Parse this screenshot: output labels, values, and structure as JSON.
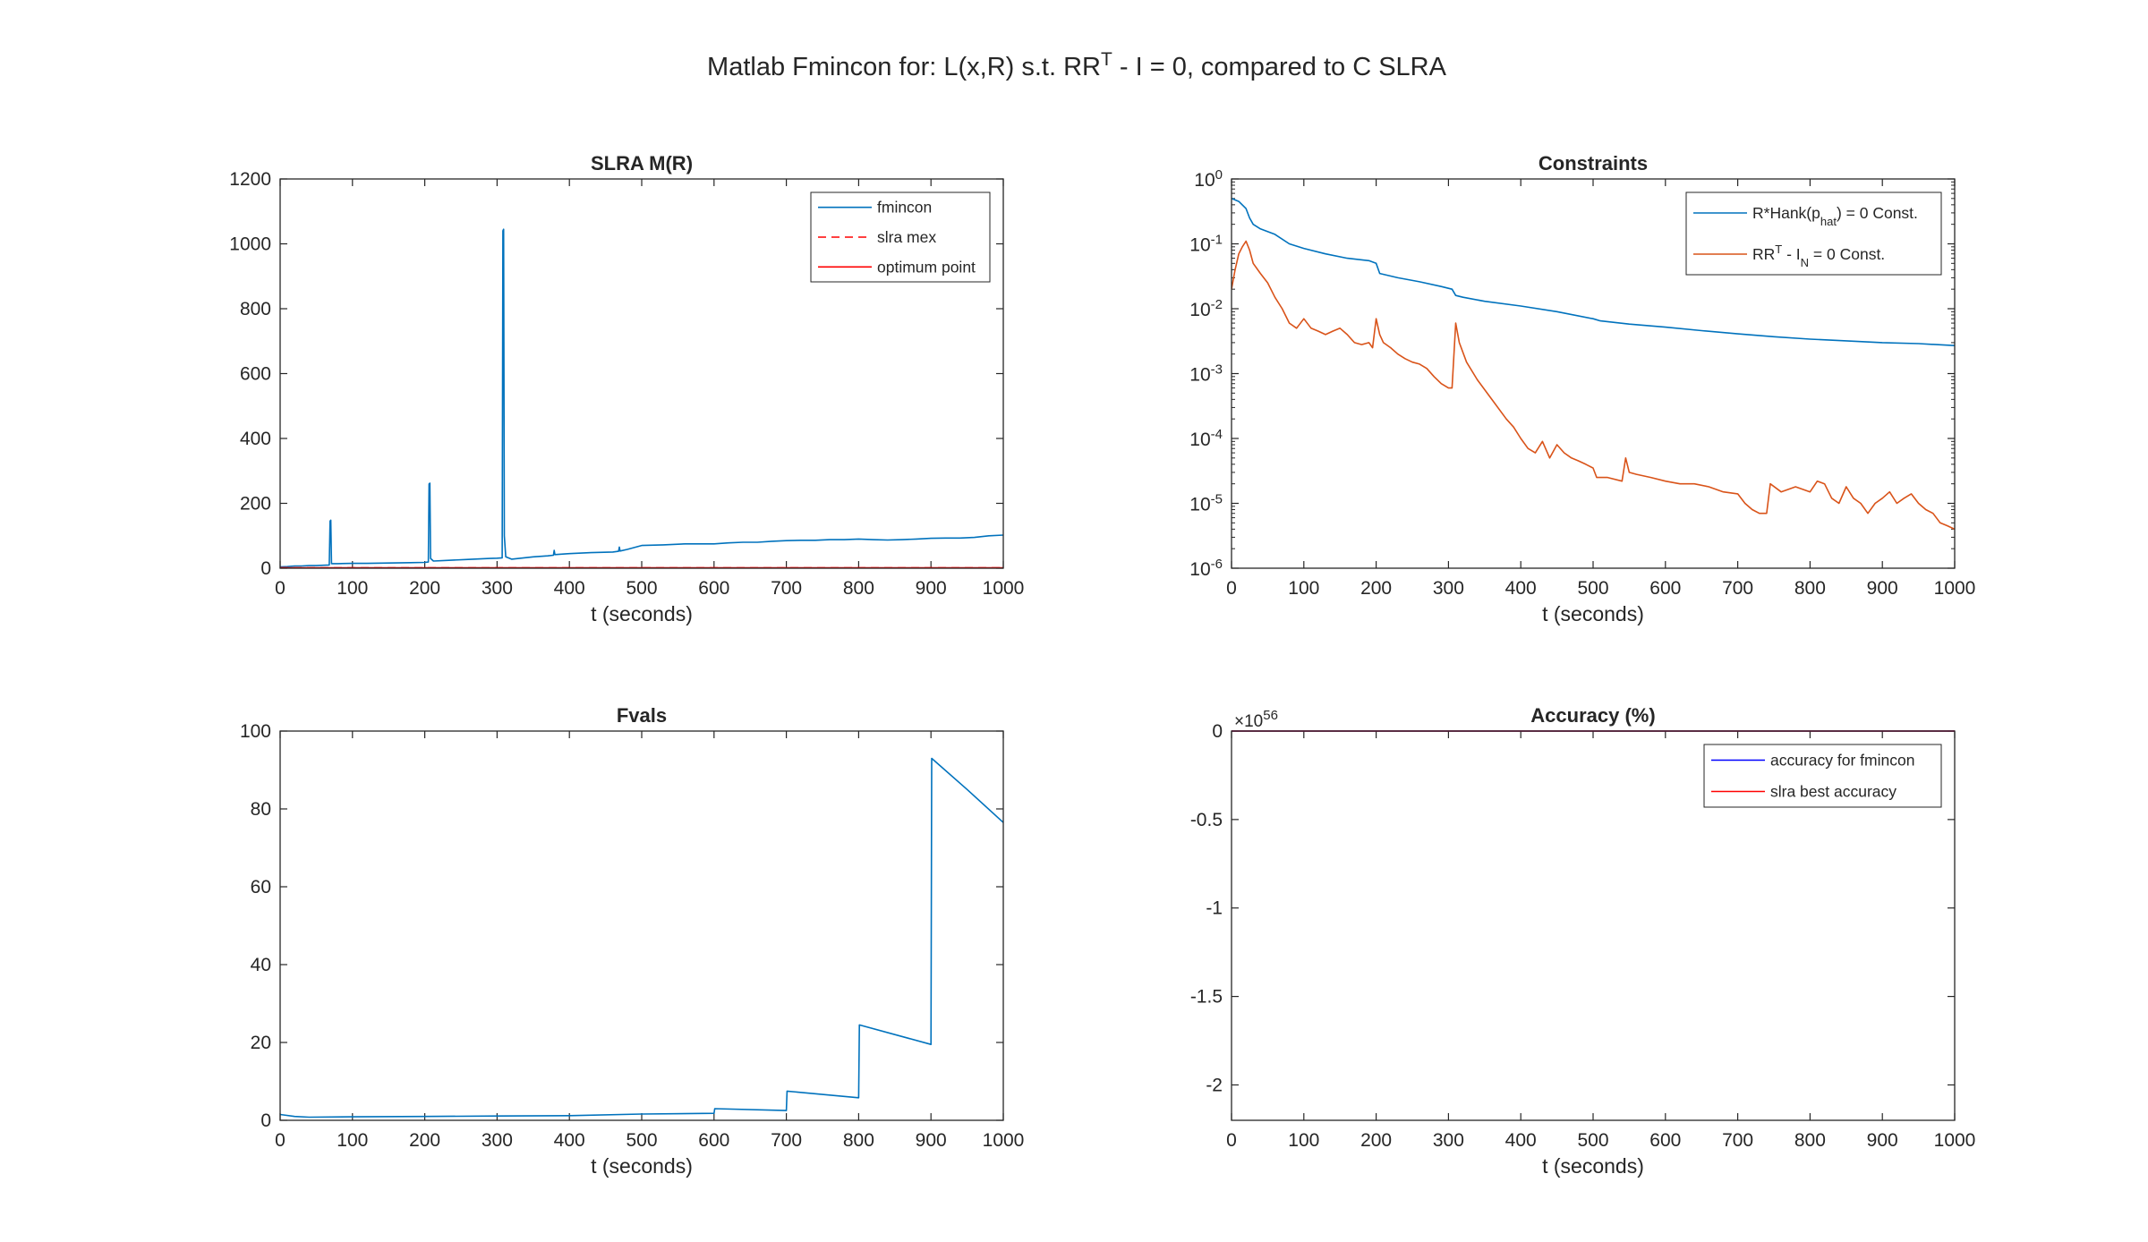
{
  "figure": {
    "suptitle_parts": [
      "Matlab Fmincon for: L(x,R) s.t. RR",
      "T",
      " - I = 0, compared to C SLRA"
    ]
  },
  "chart_data": [
    {
      "id": "slra",
      "type": "line",
      "title": "SLRA M(R)",
      "xlabel": "t (seconds)",
      "ylabel": "",
      "xlim": [
        0,
        1000
      ],
      "ylim": [
        0,
        1200
      ],
      "xticks": [
        0,
        100,
        200,
        300,
        400,
        500,
        600,
        700,
        800,
        900,
        1000
      ],
      "yticks": [
        0,
        200,
        400,
        600,
        800,
        1000,
        1200
      ],
      "legend_position": "top-right",
      "series": [
        {
          "name": "fmincon",
          "color": "#0072BD",
          "dash": "solid",
          "points": [
            [
              0,
              4
            ],
            [
              10,
              5
            ],
            [
              20,
              7
            ],
            [
              30,
              7
            ],
            [
              40,
              8
            ],
            [
              50,
              8
            ],
            [
              60,
              9
            ],
            [
              68,
              10
            ],
            [
              69,
              145
            ],
            [
              70,
              148
            ],
            [
              71,
              14
            ],
            [
              80,
              14
            ],
            [
              100,
              15
            ],
            [
              120,
              15
            ],
            [
              150,
              16
            ],
            [
              180,
              17
            ],
            [
              200,
              18
            ],
            [
              205,
              19
            ],
            [
              206,
              260
            ],
            [
              207,
              262
            ],
            [
              208,
              30
            ],
            [
              212,
              22
            ],
            [
              230,
              24
            ],
            [
              260,
              27
            ],
            [
              290,
              30
            ],
            [
              300,
              31
            ],
            [
              307,
              32
            ],
            [
              308,
              1040
            ],
            [
              309,
              1045
            ],
            [
              310,
              100
            ],
            [
              312,
              35
            ],
            [
              320,
              28
            ],
            [
              350,
              35
            ],
            [
              370,
              38
            ],
            [
              378,
              40
            ],
            [
              379,
              55
            ],
            [
              380,
              42
            ],
            [
              400,
              45
            ],
            [
              430,
              48
            ],
            [
              460,
              50
            ],
            [
              468,
              52
            ],
            [
              469,
              65
            ],
            [
              470,
              53
            ],
            [
              480,
              58
            ],
            [
              500,
              70
            ],
            [
              530,
              72
            ],
            [
              560,
              75
            ],
            [
              600,
              75
            ],
            [
              620,
              78
            ],
            [
              640,
              80
            ],
            [
              660,
              80
            ],
            [
              680,
              83
            ],
            [
              700,
              85
            ],
            [
              720,
              86
            ],
            [
              740,
              86
            ],
            [
              760,
              88
            ],
            [
              780,
              88
            ],
            [
              800,
              90
            ],
            [
              820,
              88
            ],
            [
              840,
              87
            ],
            [
              860,
              88
            ],
            [
              880,
              90
            ],
            [
              900,
              92
            ],
            [
              920,
              93
            ],
            [
              940,
              93
            ],
            [
              960,
              95
            ],
            [
              980,
              100
            ],
            [
              1000,
              102
            ]
          ]
        },
        {
          "name": "slra mex",
          "color": "#FF0000",
          "dash": "dashed",
          "points": [
            [
              0,
              1.5
            ],
            [
              1000,
              1.5
            ]
          ]
        },
        {
          "name": "optimum point",
          "color": "#FF0000",
          "dash": "solid",
          "points": [
            [
              0,
              1.5
            ],
            [
              1000,
              1.5
            ]
          ]
        }
      ]
    },
    {
      "id": "constraints",
      "type": "line",
      "title": "Constraints",
      "xlabel": "t (seconds)",
      "ylabel": "",
      "xlim": [
        0,
        1000
      ],
      "yscale": "log",
      "ylim": [
        1e-06,
        1
      ],
      "xticks": [
        0,
        100,
        200,
        300,
        400,
        500,
        600,
        700,
        800,
        900,
        1000
      ],
      "ytick_exponents": [
        0,
        -1,
        -2,
        -3,
        -4,
        -5,
        -6
      ],
      "legend_position": "top-right",
      "series": [
        {
          "name_parts": [
            "R*Hank(p",
            "hat",
            ") = 0 Const."
          ],
          "color": "#0072BD",
          "points": [
            [
              0,
              0.5
            ],
            [
              10,
              0.45
            ],
            [
              20,
              0.35
            ],
            [
              25,
              0.25
            ],
            [
              30,
              0.2
            ],
            [
              40,
              0.17
            ],
            [
              60,
              0.14
            ],
            [
              80,
              0.1
            ],
            [
              100,
              0.085
            ],
            [
              130,
              0.07
            ],
            [
              160,
              0.06
            ],
            [
              190,
              0.055
            ],
            [
              200,
              0.05
            ],
            [
              205,
              0.035
            ],
            [
              230,
              0.03
            ],
            [
              260,
              0.026
            ],
            [
              290,
              0.022
            ],
            [
              305,
              0.02
            ],
            [
              310,
              0.016
            ],
            [
              320,
              0.015
            ],
            [
              350,
              0.013
            ],
            [
              400,
              0.011
            ],
            [
              450,
              0.009
            ],
            [
              500,
              0.007
            ],
            [
              510,
              0.0065
            ],
            [
              550,
              0.0058
            ],
            [
              600,
              0.0052
            ],
            [
              650,
              0.0046
            ],
            [
              700,
              0.0041
            ],
            [
              750,
              0.0037
            ],
            [
              800,
              0.0034
            ],
            [
              850,
              0.0032
            ],
            [
              900,
              0.003
            ],
            [
              950,
              0.0029
            ],
            [
              1000,
              0.0027
            ]
          ]
        },
        {
          "name_parts": [
            "RR",
            "T",
            " - I",
            "N",
            " = 0 Const."
          ],
          "color": "#D95319",
          "points": [
            [
              0,
              0.02
            ],
            [
              5,
              0.04
            ],
            [
              10,
              0.07
            ],
            [
              15,
              0.09
            ],
            [
              20,
              0.11
            ],
            [
              25,
              0.08
            ],
            [
              30,
              0.05
            ],
            [
              40,
              0.035
            ],
            [
              50,
              0.025
            ],
            [
              60,
              0.015
            ],
            [
              70,
              0.01
            ],
            [
              80,
              0.006
            ],
            [
              90,
              0.005
            ],
            [
              100,
              0.007
            ],
            [
              110,
              0.005
            ],
            [
              120,
              0.0045
            ],
            [
              130,
              0.004
            ],
            [
              140,
              0.0045
            ],
            [
              150,
              0.005
            ],
            [
              160,
              0.004
            ],
            [
              170,
              0.003
            ],
            [
              180,
              0.0028
            ],
            [
              190,
              0.003
            ],
            [
              195,
              0.0025
            ],
            [
              200,
              0.007
            ],
            [
              205,
              0.004
            ],
            [
              210,
              0.003
            ],
            [
              220,
              0.0025
            ],
            [
              230,
              0.002
            ],
            [
              240,
              0.0017
            ],
            [
              250,
              0.0015
            ],
            [
              260,
              0.0014
            ],
            [
              270,
              0.0012
            ],
            [
              280,
              0.0009
            ],
            [
              290,
              0.0007
            ],
            [
              300,
              0.0006
            ],
            [
              305,
              0.0006
            ],
            [
              310,
              0.006
            ],
            [
              315,
              0.003
            ],
            [
              325,
              0.0015
            ],
            [
              340,
              0.0008
            ],
            [
              360,
              0.0004
            ],
            [
              380,
              0.0002
            ],
            [
              390,
              0.00015
            ],
            [
              400,
              0.0001
            ],
            [
              410,
              7e-05
            ],
            [
              420,
              6e-05
            ],
            [
              430,
              9e-05
            ],
            [
              440,
              5e-05
            ],
            [
              450,
              8e-05
            ],
            [
              460,
              6e-05
            ],
            [
              470,
              5e-05
            ],
            [
              480,
              4.5e-05
            ],
            [
              490,
              4e-05
            ],
            [
              500,
              3.5e-05
            ],
            [
              505,
              2.5e-05
            ],
            [
              520,
              2.5e-05
            ],
            [
              540,
              2.2e-05
            ],
            [
              545,
              5e-05
            ],
            [
              550,
              3e-05
            ],
            [
              560,
              2.8e-05
            ],
            [
              580,
              2.5e-05
            ],
            [
              600,
              2.2e-05
            ],
            [
              620,
              2e-05
            ],
            [
              640,
              2e-05
            ],
            [
              660,
              1.8e-05
            ],
            [
              680,
              1.5e-05
            ],
            [
              700,
              1.4e-05
            ],
            [
              710,
              1e-05
            ],
            [
              720,
              8e-06
            ],
            [
              730,
              7e-06
            ],
            [
              740,
              7e-06
            ],
            [
              745,
              2e-05
            ],
            [
              760,
              1.5e-05
            ],
            [
              780,
              1.8e-05
            ],
            [
              800,
              1.5e-05
            ],
            [
              810,
              2.2e-05
            ],
            [
              820,
              2e-05
            ],
            [
              830,
              1.2e-05
            ],
            [
              840,
              1e-05
            ],
            [
              850,
              1.8e-05
            ],
            [
              860,
              1.2e-05
            ],
            [
              870,
              1e-05
            ],
            [
              880,
              7e-06
            ],
            [
              890,
              1e-05
            ],
            [
              900,
              1.2e-05
            ],
            [
              910,
              1.5e-05
            ],
            [
              920,
              1e-05
            ],
            [
              930,
              1.2e-05
            ],
            [
              940,
              1.4e-05
            ],
            [
              950,
              1e-05
            ],
            [
              960,
              8e-06
            ],
            [
              970,
              7e-06
            ],
            [
              980,
              5e-06
            ],
            [
              990,
              4.5e-06
            ],
            [
              1000,
              4e-06
            ]
          ]
        }
      ]
    },
    {
      "id": "fvals",
      "type": "line",
      "title": "Fvals",
      "xlabel": "t (seconds)",
      "ylabel": "",
      "xlim": [
        0,
        1000
      ],
      "ylim": [
        0,
        100
      ],
      "xticks": [
        0,
        100,
        200,
        300,
        400,
        500,
        600,
        700,
        800,
        900,
        1000
      ],
      "yticks": [
        0,
        20,
        40,
        60,
        80,
        100
      ],
      "series": [
        {
          "name": "",
          "color": "#0072BD",
          "points": [
            [
              0,
              1.5
            ],
            [
              20,
              1.0
            ],
            [
              40,
              0.8
            ],
            [
              100,
              0.9
            ],
            [
              200,
              1.0
            ],
            [
              300,
              1.1
            ],
            [
              400,
              1.2
            ],
            [
              500,
              1.6
            ],
            [
              600,
              1.8
            ],
            [
              601,
              3.0
            ],
            [
              700,
              2.5
            ],
            [
              701,
              7.5
            ],
            [
              800,
              5.8
            ],
            [
              801,
              24.5
            ],
            [
              900,
              19.5
            ],
            [
              901,
              93
            ],
            [
              950,
              85
            ],
            [
              1000,
              76.5
            ]
          ]
        }
      ]
    },
    {
      "id": "accuracy",
      "type": "line",
      "title": "Accuracy (%)",
      "xlabel": "t (seconds)",
      "ylabel": "",
      "xlim": [
        0,
        1000
      ],
      "ylim": [
        -2.2,
        0
      ],
      "y_exponent_label": [
        "×10",
        "56"
      ],
      "xticks": [
        0,
        100,
        200,
        300,
        400,
        500,
        600,
        700,
        800,
        900,
        1000
      ],
      "yticks": [
        0,
        -0.5,
        -1,
        -1.5,
        -2
      ],
      "legend_position": "top-right",
      "series": [
        {
          "name": "accuracy for fmincon",
          "color": "#0000FF",
          "points": [
            [
              0,
              0
            ],
            [
              1000,
              0
            ]
          ]
        },
        {
          "name": "slra best accuracy",
          "color": "#FF0000",
          "points": [
            [
              0,
              0
            ],
            [
              1000,
              0
            ]
          ]
        }
      ]
    }
  ]
}
